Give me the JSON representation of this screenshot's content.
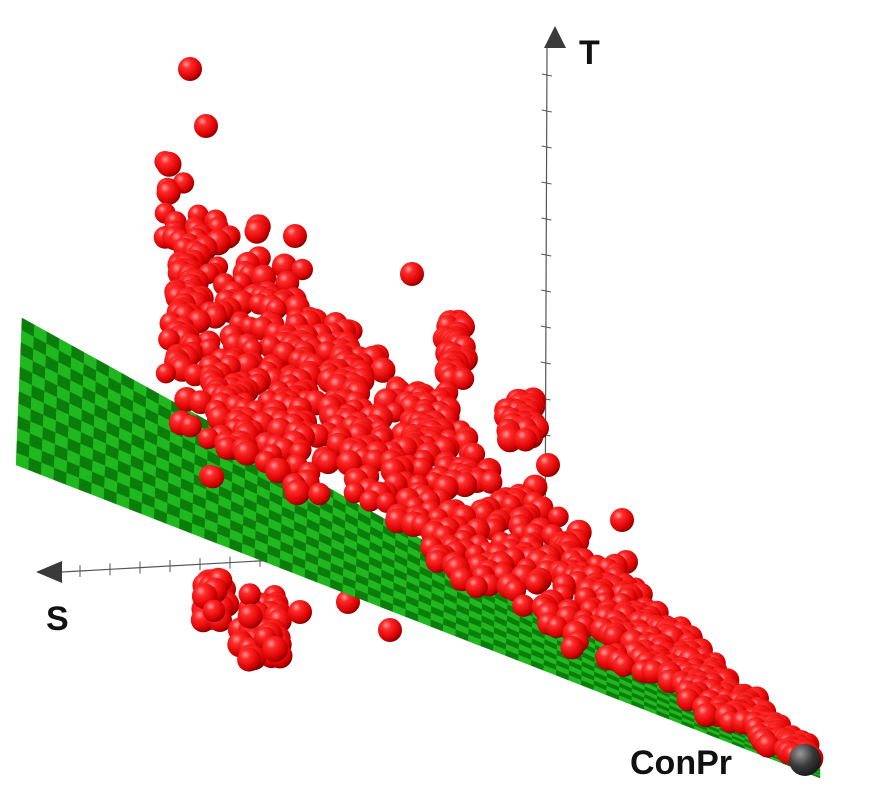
{
  "chart_data": {
    "type": "scatter",
    "projection": "3d",
    "axes": {
      "x": "S",
      "y": "T",
      "z": "ConPr"
    },
    "marker": {
      "shape": "sphere",
      "color": "#ee0000",
      "highlight": "#ff9a9a"
    },
    "fit_plane": {
      "present": true,
      "colors": [
        "#0a7d0a",
        "#1fb81f"
      ],
      "pattern": "checkerboard"
    },
    "axis_arrow_color": "#333333",
    "grid": false,
    "legend": "none",
    "point_count_estimate": 1000
  }
}
